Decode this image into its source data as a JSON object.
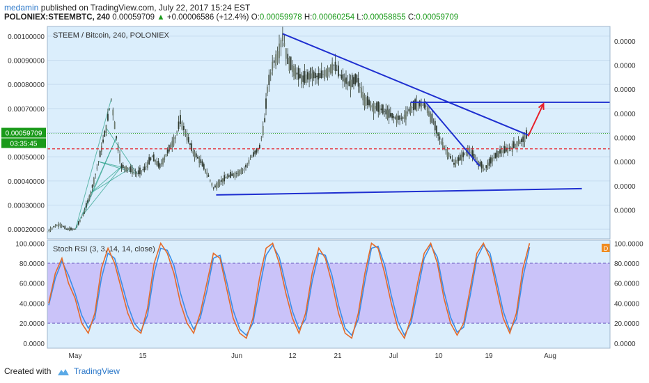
{
  "header": {
    "author": "medamin",
    "published_text": "published on TradingView.com, July 22, 2017 15:24 EST",
    "symbol_line": "POLONIEX:STEEMBTC, 240",
    "last": "0.00059709",
    "change_arrow": "▲",
    "change": "+0.00006586 (+12.4%)",
    "o_label": "O:",
    "o_value": "0.00059978",
    "h_label": "H:",
    "h_value": "0.00060254",
    "l_label": "L:",
    "l_value": "0.00058855",
    "c_label": "C:",
    "c_value": "0.00059709"
  },
  "footer": {
    "created_with": "Created with",
    "brand": "TradingView"
  },
  "colors": {
    "pane_bg": "#dbeefc",
    "stoch_band": "#c5b8f7",
    "trendline": "#1f2fd0",
    "arrow": "#e8202a",
    "support_dash": "#e8202a",
    "k_line": "#e56b2a",
    "d_line": "#3a8ee8",
    "candle": "#2f3a2f",
    "early_lines": "#2aa18a"
  },
  "chart_data": [
    {
      "type": "candlestick",
      "title": "STEEM / Bitcoin, 240, POLONIEX",
      "y_axis_left_ticks": [
        "0.00100000",
        "0.00090000",
        "0.00080000",
        "0.00070000",
        "0.00060000",
        "0.00050000",
        "0.00040000",
        "0.00030000",
        "0.00020000"
      ],
      "y_axis_right_ticks": [
        "0.0000",
        "0.0000",
        "0.0000",
        "0.0000",
        "0.0000",
        "0.0000",
        "0.0000",
        "0.0000"
      ],
      "ylim": [
        0.00016,
        0.00104
      ],
      "x_ticks": [
        "May",
        "15",
        "Jun",
        "12",
        "21",
        "Jul",
        "10",
        "19",
        "Aug"
      ],
      "last_price_label": "0.00059709",
      "countdown_label": "03:35:45",
      "dashed_level": 0.000533,
      "price_points": [
        [
          0,
          0.00019
        ],
        [
          5,
          0.00021
        ],
        [
          10,
          0.00022
        ],
        [
          15,
          0.0002
        ],
        [
          22,
          0.0002
        ],
        [
          28,
          0.00026
        ],
        [
          34,
          0.00035
        ],
        [
          40,
          0.00048
        ],
        [
          46,
          0.00062
        ],
        [
          50,
          0.00074
        ],
        [
          54,
          0.00058
        ],
        [
          58,
          0.00046
        ],
        [
          64,
          0.00045
        ],
        [
          70,
          0.00043
        ],
        [
          76,
          0.00045
        ],
        [
          82,
          0.0005
        ],
        [
          88,
          0.00046
        ],
        [
          94,
          0.00052
        ],
        [
          100,
          0.00058
        ],
        [
          104,
          0.00065
        ],
        [
          108,
          0.0006
        ],
        [
          114,
          0.00052
        ],
        [
          120,
          0.00048
        ],
        [
          126,
          0.00042
        ],
        [
          130,
          0.00037
        ],
        [
          136,
          0.0004
        ],
        [
          142,
          0.00042
        ],
        [
          148,
          0.00043
        ],
        [
          154,
          0.00045
        ],
        [
          160,
          0.0005
        ],
        [
          166,
          0.00054
        ],
        [
          170,
          0.00065
        ],
        [
          172,
          0.00078
        ],
        [
          176,
          0.00088
        ],
        [
          180,
          0.00092
        ],
        [
          184,
          0.001
        ],
        [
          188,
          0.0009
        ],
        [
          194,
          0.00085
        ],
        [
          200,
          0.00082
        ],
        [
          206,
          0.00084
        ],
        [
          212,
          0.00083
        ],
        [
          218,
          0.00085
        ],
        [
          224,
          0.00088
        ],
        [
          230,
          0.00083
        ],
        [
          236,
          0.0008
        ],
        [
          242,
          0.00082
        ],
        [
          248,
          0.00074
        ],
        [
          254,
          0.00071
        ],
        [
          260,
          0.0007
        ],
        [
          266,
          0.00068
        ],
        [
          272,
          0.00066
        ],
        [
          278,
          0.00066
        ],
        [
          284,
          0.0007
        ],
        [
          290,
          0.00072
        ],
        [
          296,
          0.00071
        ],
        [
          302,
          0.00064
        ],
        [
          308,
          0.00056
        ],
        [
          314,
          0.00051
        ],
        [
          318,
          0.00047
        ],
        [
          324,
          0.0005
        ],
        [
          330,
          0.00053
        ],
        [
          336,
          0.00048
        ],
        [
          342,
          0.00045
        ],
        [
          348,
          0.00049
        ],
        [
          354,
          0.00052
        ],
        [
          360,
          0.00053
        ],
        [
          366,
          0.00055
        ],
        [
          372,
          0.00057
        ],
        [
          376,
          0.000597
        ]
      ],
      "annotations": {
        "resistance_lines": [
          {
            "from": [
              184,
              0.00101
            ],
            "to": [
              376,
              0.00059
            ]
          },
          {
            "from": [
              296,
              0.000725
            ],
            "to": [
              338,
              0.000462
            ]
          },
          {
            "from": [
              284,
              0.000726
            ],
            "to": [
              440,
              0.000726
            ]
          }
        ],
        "support_line": {
          "from": [
            132,
            0.000342
          ],
          "to": [
            418,
            0.000368
          ]
        },
        "target_arrow": {
          "from": [
            376,
            0.000585
          ],
          "to": [
            388,
            0.00072
          ]
        }
      }
    },
    {
      "type": "line",
      "title": "Stoch RSI (3, 3, 14, 14, close)",
      "badge": "D",
      "y_ticks_left": [
        "100.0000",
        "80.0000",
        "60.0000",
        "40.0000",
        "20.0000",
        "0.0000"
      ],
      "y_ticks_right": [
        "100.0000",
        "80.0000",
        "60.0000",
        "40.0000",
        "20.0000",
        "0.0000"
      ],
      "ylim": [
        -5,
        103
      ],
      "band": [
        20,
        80
      ],
      "series": [
        {
          "values": [
            40,
            70,
            85,
            60,
            45,
            20,
            10,
            30,
            75,
            95,
            80,
            55,
            30,
            15,
            10,
            35,
            80,
            100,
            90,
            70,
            40,
            20,
            10,
            30,
            60,
            90,
            85,
            55,
            25,
            10,
            5,
            25,
            65,
            95,
            100,
            80,
            50,
            25,
            10,
            30,
            70,
            95,
            85,
            60,
            30,
            10,
            5,
            30,
            70,
            100,
            95,
            70,
            40,
            15,
            5,
            25,
            60,
            90,
            100,
            80,
            45,
            20,
            8,
            20,
            55,
            90,
            100,
            85,
            55,
            25,
            10,
            30,
            75,
            100
          ]
        },
        {
          "values": [
            38,
            65,
            82,
            68,
            50,
            28,
            15,
            25,
            65,
            90,
            85,
            62,
            38,
            20,
            12,
            28,
            70,
            95,
            93,
            78,
            50,
            28,
            14,
            25,
            52,
            85,
            88,
            62,
            33,
            14,
            8,
            20,
            55,
            88,
            98,
            86,
            58,
            32,
            14,
            24,
            62,
            90,
            88,
            68,
            38,
            15,
            8,
            24,
            62,
            95,
            97,
            78,
            48,
            22,
            8,
            20,
            52,
            85,
            98,
            86,
            52,
            26,
            11,
            16,
            48,
            85,
            98,
            90,
            62,
            32,
            13,
            24,
            66,
            96
          ]
        }
      ],
      "x_ticks": [
        "May",
        "15",
        "Jun",
        "12",
        "21",
        "Jul",
        "10",
        "19",
        "Aug"
      ]
    }
  ]
}
